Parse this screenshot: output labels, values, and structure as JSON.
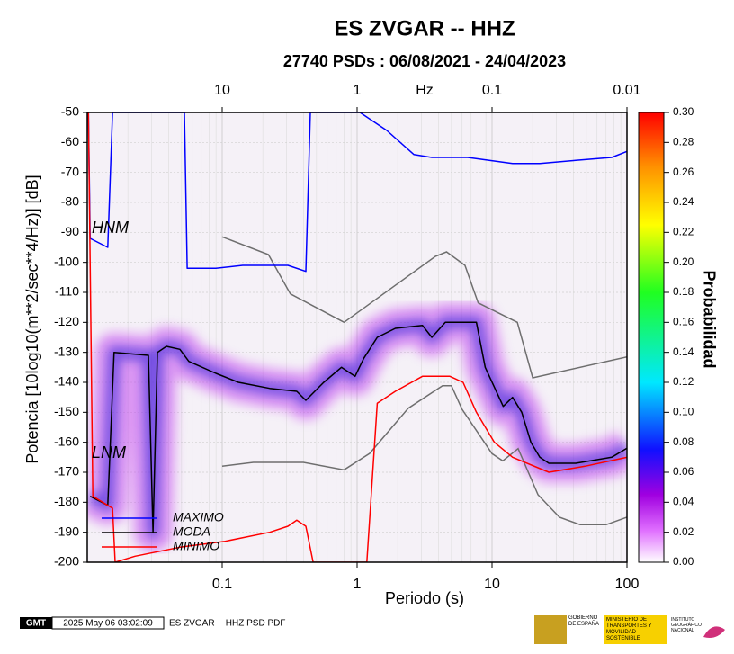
{
  "chart_data": {
    "type": "line",
    "title": "ES ZVGAR -- HHZ",
    "subtitle": "27740 PSDs : 06/08/2021 - 24/04/2023",
    "xlabel": "Periodo (s)",
    "ylabel": "Potencia [10log10(m**2/sec**4/Hz)] [dB]",
    "log_x": true,
    "grid": true,
    "xlim": [
      0.01,
      100
    ],
    "xticks": [
      0.1,
      1,
      10,
      100
    ],
    "ylim": [
      -200,
      -50
    ],
    "yticks": [
      -50,
      -60,
      -70,
      -80,
      -90,
      -100,
      -110,
      -120,
      -130,
      -140,
      -150,
      -160,
      -170,
      -180,
      -190,
      -200
    ],
    "top_axis": {
      "label": "Hz",
      "ticks": [
        {
          "value": 0.1,
          "label": "10"
        },
        {
          "value": 1,
          "label": "1"
        },
        {
          "value": 10,
          "label": "0.1"
        },
        {
          "value": 100,
          "label": "0.01"
        }
      ]
    },
    "series": [
      {
        "name": "MAXIMO",
        "color": "#0000ff",
        "x": [
          0.0102,
          0.0105,
          0.0142,
          0.0154,
          0.0525,
          0.055,
          0.0898,
          0.142,
          0.307,
          0.417,
          0.45,
          1.05,
          1.66,
          2.63,
          3.58,
          6.6,
          14.2,
          22.6,
          41.7,
          77,
          100
        ],
        "values": [
          -50,
          -92,
          -95,
          -50,
          -50,
          -102,
          -102,
          -101,
          -101,
          -103,
          -50,
          -50,
          -56,
          -64,
          -65,
          -65,
          -67,
          -67,
          -66,
          -65,
          -63
        ]
      },
      {
        "name": "MODA",
        "color": "#000000",
        "x": [
          0.0105,
          0.0142,
          0.0158,
          0.0284,
          0.0307,
          0.0331,
          0.0386,
          0.0486,
          0.0566,
          0.0898,
          0.132,
          0.225,
          0.357,
          0.417,
          0.566,
          0.766,
          0.966,
          1.12,
          1.41,
          1.92,
          3.05,
          3.58,
          4.51,
          7.66,
          8.9,
          12.1,
          14.2,
          16.6,
          19.4,
          22.6,
          26.4,
          41.7,
          77,
          100
        ],
        "values": [
          -178,
          -181,
          -130,
          -131,
          -190,
          -130,
          -128,
          -129,
          -133,
          -137,
          -140,
          -142,
          -143,
          -146,
          -140,
          -135,
          -138,
          -132,
          -125,
          -122,
          -121,
          -125,
          -120,
          -120,
          -135,
          -148,
          -145,
          -150,
          -160,
          -165,
          -167,
          -167,
          -165,
          -162
        ]
      },
      {
        "name": "MINIMO",
        "color": "#ff0000",
        "x": [
          0.0102,
          0.011,
          0.0154,
          0.0161,
          0.0226,
          0.0486,
          0.105,
          0.225,
          0.307,
          0.357,
          0.417,
          0.472,
          1.18,
          1.41,
          1.92,
          3.05,
          4.87,
          6.1,
          7.66,
          10.4,
          14.2,
          26.4,
          48.8,
          100
        ],
        "values": [
          -50,
          -178,
          -182,
          -200,
          -198,
          -195,
          -193,
          -190,
          -188,
          -186,
          -188,
          -200,
          -200,
          -147,
          -143,
          -138,
          -138,
          -140,
          -150,
          -160,
          -165,
          -170,
          -168,
          -165
        ]
      }
    ],
    "reference_models": [
      {
        "name": "HNM",
        "color": "#6e6e6e",
        "x": [
          0.1,
          0.22,
          0.32,
          0.8,
          3.8,
          4.6,
          6.3,
          7.9,
          15.4,
          20,
          100
        ],
        "values": [
          -91.5,
          -97.4,
          -110.5,
          -120,
          -98,
          -96.5,
          -101,
          -113.5,
          -120,
          -138.5,
          -131.5
        ]
      },
      {
        "name": "LNM",
        "color": "#6e6e6e",
        "x": [
          0.1,
          0.17,
          0.4,
          0.8,
          1.24,
          2.4,
          4.3,
          5,
          6,
          10,
          12,
          15.6,
          21.9,
          31.6,
          45,
          70,
          100
        ],
        "values": [
          -168,
          -166.7,
          -166.7,
          -169.2,
          -163.7,
          -148.6,
          -141.1,
          -141.1,
          -149,
          -163.8,
          -166.2,
          -162.1,
          -177.5,
          -185,
          -187.5,
          -187.5,
          -185
        ]
      }
    ],
    "colorbar": {
      "label": "Probabilidad",
      "lim": [
        0,
        0.3
      ],
      "ticks": [
        {
          "value": 0,
          "label": "0.00"
        },
        {
          "value": 0.02,
          "label": "0.02"
        },
        {
          "value": 0.04,
          "label": "0.04"
        },
        {
          "value": 0.06,
          "label": "0.06"
        },
        {
          "value": 0.08,
          "label": "0.08"
        },
        {
          "value": 0.1,
          "label": "0.10"
        },
        {
          "value": 0.12,
          "label": "0.12"
        },
        {
          "value": 0.14,
          "label": "0.14"
        },
        {
          "value": 0.16,
          "label": "0.16"
        },
        {
          "value": 0.18,
          "label": "0.18"
        },
        {
          "value": 0.2,
          "label": "0.20"
        },
        {
          "value": 0.22,
          "label": "0.22"
        },
        {
          "value": 0.24,
          "label": "0.24"
        },
        {
          "value": 0.26,
          "label": "0.26"
        },
        {
          "value": 0.28,
          "label": "0.28"
        },
        {
          "value": 0.3,
          "label": "0.30"
        }
      ]
    }
  },
  "footer": {
    "logo": "GMT",
    "timestamp": "2025 May 06 03:02:09",
    "caption": "ES ZVGAR -- HHZ PSD PDF",
    "institutions": [
      "GOBIERNO DE ESPAÑA",
      "MINISTERIO DE TRANSPORTES Y MOVILIDAD SOSTENIBLE",
      "INSTITUTO GEOGRÁFICO NACIONAL"
    ]
  }
}
